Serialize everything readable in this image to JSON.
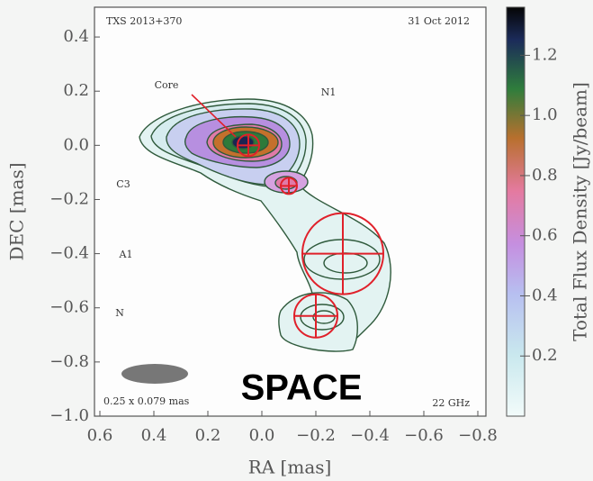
{
  "chart_data": {
    "type": "contour",
    "title": "TXS 2013+370",
    "date": "31 Oct 2012",
    "frequency": "22 GHz",
    "beam_label": "0.25 x 0.079 mas",
    "overlay_text": "SPACE",
    "xlabel": "RA [mas]",
    "ylabel": "DEC [mas]",
    "colorbar_label": "Total Flux Density [Jy/beam]",
    "xlim": [
      0.62,
      -0.83
    ],
    "ylim": [
      -1.0,
      0.51
    ],
    "xticks": [
      0.6,
      0.4,
      0.2,
      {
        "value": 0,
        "label": "0.0"
      },
      {
        "value": -0.2,
        "label": "−0.2"
      },
      {
        "value": -0.4,
        "label": "−0.4"
      },
      {
        "value": -0.6,
        "label": "−0.6"
      },
      {
        "value": -0.8,
        "label": "−0.8"
      }
    ],
    "yticks": [
      0.4,
      0.2,
      {
        "value": 0,
        "label": "0.0"
      },
      {
        "value": -0.2,
        "label": "−0.2"
      },
      {
        "value": -0.4,
        "label": "−0.4"
      },
      {
        "value": -0.6,
        "label": "−0.6"
      },
      {
        "value": -0.8,
        "label": "−0.8"
      },
      {
        "value": -1.0,
        "label": "−1.0"
      }
    ],
    "clim": [
      0,
      1.36
    ],
    "cticks": [
      0.2,
      0.4,
      0.6,
      0.8,
      {
        "value": 1.0,
        "label": "1.0"
      },
      1.2
    ],
    "component_labels": [
      "Core",
      "N1",
      "C3",
      "A1",
      "N"
    ],
    "markers": [
      {
        "x": 0.05,
        "y": 0.0,
        "size": 0.04
      },
      {
        "x": -0.1,
        "y": -0.15,
        "size": 0.03
      },
      {
        "x": -0.3,
        "y": -0.4,
        "size": 0.15
      },
      {
        "x": -0.2,
        "y": -0.63,
        "size": 0.08
      }
    ],
    "marker_color": "#e0202a"
  }
}
